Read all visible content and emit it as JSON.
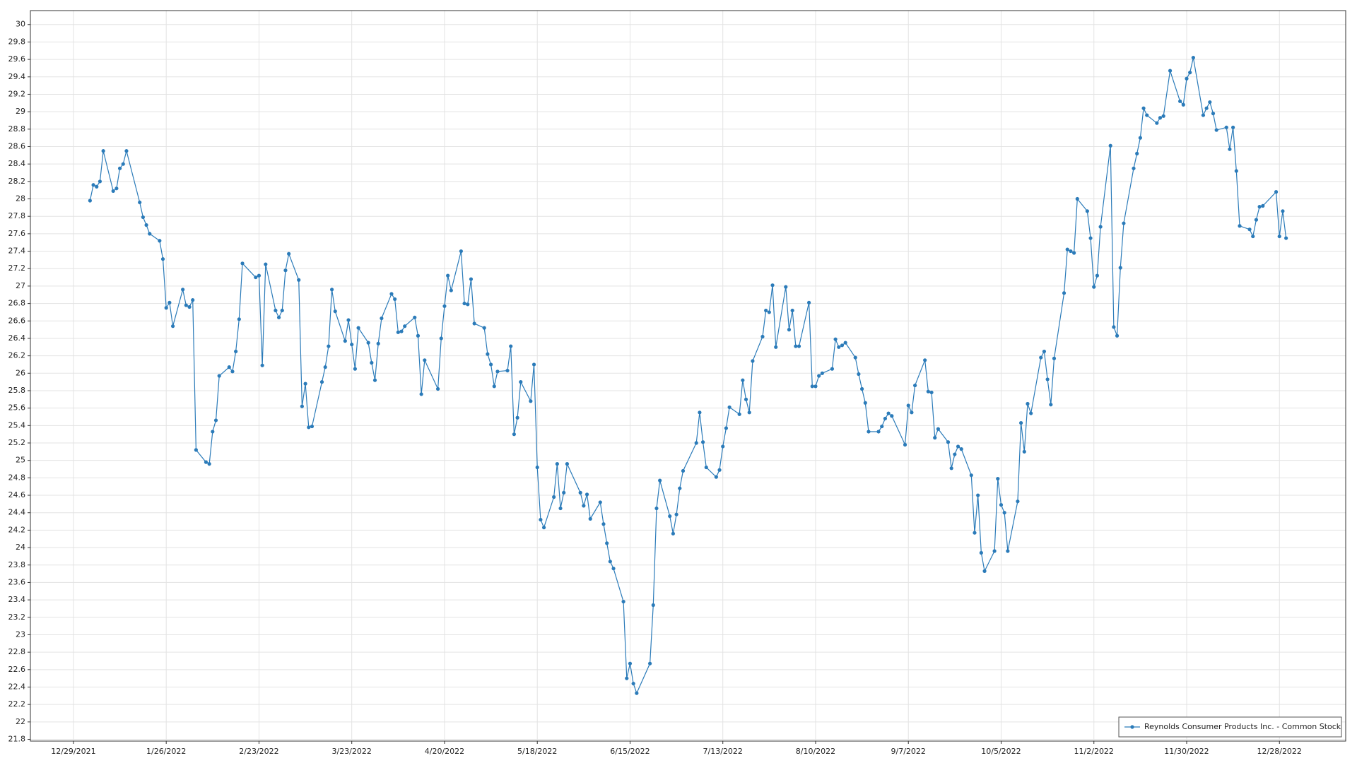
{
  "chart_data": {
    "type": "line",
    "x": [
      "1/3/2022",
      "1/4/2022",
      "1/5/2022",
      "1/6/2022",
      "1/7/2022",
      "1/10/2022",
      "1/11/2022",
      "1/12/2022",
      "1/13/2022",
      "1/14/2022",
      "1/18/2022",
      "1/19/2022",
      "1/20/2022",
      "1/21/2022",
      "1/24/2022",
      "1/25/2022",
      "1/26/2022",
      "1/27/2022",
      "1/28/2022",
      "1/31/2022",
      "2/1/2022",
      "2/2/2022",
      "2/3/2022",
      "2/4/2022",
      "2/7/2022",
      "2/8/2022",
      "2/9/2022",
      "2/10/2022",
      "2/11/2022",
      "2/14/2022",
      "2/15/2022",
      "2/16/2022",
      "2/17/2022",
      "2/18/2022",
      "2/22/2022",
      "2/23/2022",
      "2/24/2022",
      "2/25/2022",
      "2/28/2022",
      "3/1/2022",
      "3/2/2022",
      "3/3/2022",
      "3/4/2022",
      "3/7/2022",
      "3/8/2022",
      "3/9/2022",
      "3/10/2022",
      "3/11/2022",
      "3/14/2022",
      "3/15/2022",
      "3/16/2022",
      "3/17/2022",
      "3/18/2022",
      "3/21/2022",
      "3/22/2022",
      "3/23/2022",
      "3/24/2022",
      "3/25/2022",
      "3/28/2022",
      "3/29/2022",
      "3/30/2022",
      "3/31/2022",
      "4/1/2022",
      "4/4/2022",
      "4/5/2022",
      "4/6/2022",
      "4/7/2022",
      "4/8/2022",
      "4/11/2022",
      "4/12/2022",
      "4/13/2022",
      "4/14/2022",
      "4/18/2022",
      "4/19/2022",
      "4/20/2022",
      "4/21/2022",
      "4/22/2022",
      "4/25/2022",
      "4/26/2022",
      "4/27/2022",
      "4/28/2022",
      "4/29/2022",
      "5/2/2022",
      "5/3/2022",
      "5/4/2022",
      "5/5/2022",
      "5/6/2022",
      "5/9/2022",
      "5/10/2022",
      "5/11/2022",
      "5/12/2022",
      "5/13/2022",
      "5/16/2022",
      "5/17/2022",
      "5/18/2022",
      "5/19/2022",
      "5/20/2022",
      "5/23/2022",
      "5/24/2022",
      "5/25/2022",
      "5/26/2022",
      "5/27/2022",
      "5/31/2022",
      "6/1/2022",
      "6/2/2022",
      "6/3/2022",
      "6/6/2022",
      "6/7/2022",
      "6/8/2022",
      "6/9/2022",
      "6/10/2022",
      "6/13/2022",
      "6/14/2022",
      "6/15/2022",
      "6/16/2022",
      "6/17/2022",
      "6/21/2022",
      "6/22/2022",
      "6/23/2022",
      "6/24/2022",
      "6/27/2022",
      "6/28/2022",
      "6/29/2022",
      "6/30/2022",
      "7/1/2022",
      "7/5/2022",
      "7/6/2022",
      "7/7/2022",
      "7/8/2022",
      "7/11/2022",
      "7/12/2022",
      "7/13/2022",
      "7/14/2022",
      "7/15/2022",
      "7/18/2022",
      "7/19/2022",
      "7/20/2022",
      "7/21/2022",
      "7/22/2022",
      "7/25/2022",
      "7/26/2022",
      "7/27/2022",
      "7/28/2022",
      "7/29/2022",
      "8/1/2022",
      "8/2/2022",
      "8/3/2022",
      "8/4/2022",
      "8/5/2022",
      "8/8/2022",
      "8/9/2022",
      "8/10/2022",
      "8/11/2022",
      "8/12/2022",
      "8/15/2022",
      "8/16/2022",
      "8/17/2022",
      "8/18/2022",
      "8/19/2022",
      "8/22/2022",
      "8/23/2022",
      "8/24/2022",
      "8/25/2022",
      "8/26/2022",
      "8/29/2022",
      "8/30/2022",
      "8/31/2022",
      "9/1/2022",
      "9/2/2022",
      "9/6/2022",
      "9/7/2022",
      "9/8/2022",
      "9/9/2022",
      "9/12/2022",
      "9/13/2022",
      "9/14/2022",
      "9/15/2022",
      "9/16/2022",
      "9/19/2022",
      "9/20/2022",
      "9/21/2022",
      "9/22/2022",
      "9/23/2022",
      "9/26/2022",
      "9/27/2022",
      "9/28/2022",
      "9/29/2022",
      "9/30/2022",
      "10/3/2022",
      "10/4/2022",
      "10/5/2022",
      "10/6/2022",
      "10/7/2022",
      "10/10/2022",
      "10/11/2022",
      "10/12/2022",
      "10/13/2022",
      "10/14/2022",
      "10/17/2022",
      "10/18/2022",
      "10/19/2022",
      "10/20/2022",
      "10/21/2022",
      "10/24/2022",
      "10/25/2022",
      "10/26/2022",
      "10/27/2022",
      "10/28/2022",
      "10/31/2022",
      "11/1/2022",
      "11/2/2022",
      "11/3/2022",
      "11/4/2022",
      "11/7/2022",
      "11/8/2022",
      "11/9/2022",
      "11/10/2022",
      "11/11/2022",
      "11/14/2022",
      "11/15/2022",
      "11/16/2022",
      "11/17/2022",
      "11/18/2022",
      "11/21/2022",
      "11/22/2022",
      "11/23/2022",
      "11/25/2022",
      "11/28/2022",
      "11/29/2022",
      "11/30/2022",
      "12/1/2022",
      "12/2/2022",
      "12/5/2022",
      "12/6/2022",
      "12/7/2022",
      "12/8/2022",
      "12/9/2022",
      "12/12/2022",
      "12/13/2022",
      "12/14/2022",
      "12/15/2022",
      "12/16/2022",
      "12/19/2022",
      "12/20/2022",
      "12/21/2022",
      "12/22/2022",
      "12/23/2022",
      "12/27/2022",
      "12/28/2022",
      "12/29/2022",
      "12/30/2022"
    ],
    "series": [
      {
        "name": "Reynolds Consumer Products Inc. - Common Stock",
        "color": "#2b7bb9",
        "values": [
          27.98,
          28.16,
          28.14,
          28.2,
          28.55,
          28.09,
          28.12,
          28.35,
          28.4,
          28.55,
          27.96,
          27.79,
          27.7,
          27.6,
          27.52,
          27.31,
          26.75,
          26.81,
          26.54,
          26.96,
          26.78,
          26.76,
          26.84,
          25.12,
          24.98,
          24.96,
          25.33,
          25.46,
          25.97,
          26.07,
          26.02,
          26.25,
          26.62,
          27.26,
          27.1,
          27.12,
          26.09,
          27.25,
          26.72,
          26.64,
          26.72,
          27.18,
          27.37,
          27.07,
          25.62,
          25.88,
          25.38,
          25.39,
          25.9,
          26.07,
          26.31,
          26.96,
          26.71,
          26.37,
          26.61,
          26.33,
          26.05,
          26.52,
          26.35,
          26.12,
          25.92,
          26.34,
          26.63,
          26.91,
          26.85,
          26.47,
          26.48,
          26.54,
          26.64,
          26.43,
          25.76,
          26.15,
          25.82,
          26.4,
          26.77,
          27.12,
          26.95,
          27.4,
          26.8,
          26.79,
          27.08,
          26.57,
          26.52,
          26.22,
          26.1,
          25.85,
          26.02,
          26.03,
          26.31,
          25.3,
          25.49,
          25.9,
          25.68,
          26.1,
          24.92,
          24.32,
          24.23,
          24.58,
          24.96,
          24.45,
          24.63,
          24.96,
          24.63,
          24.48,
          24.61,
          24.33,
          24.52,
          24.27,
          24.05,
          23.84,
          23.76,
          23.38,
          22.5,
          22.67,
          22.44,
          22.33,
          22.67,
          23.34,
          24.45,
          24.77,
          24.36,
          24.16,
          24.38,
          24.68,
          24.88,
          25.2,
          25.55,
          25.21,
          24.92,
          24.81,
          24.89,
          25.16,
          25.37,
          25.61,
          25.53,
          25.92,
          25.7,
          25.55,
          26.14,
          26.42,
          26.72,
          26.7,
          27.01,
          26.3,
          26.99,
          26.5,
          26.72,
          26.31,
          26.31,
          26.81,
          25.85,
          25.85,
          25.97,
          26.0,
          26.05,
          26.39,
          26.3,
          26.32,
          26.35,
          26.18,
          25.99,
          25.82,
          25.66,
          25.33,
          25.33,
          25.39,
          25.48,
          25.54,
          25.51,
          25.18,
          25.63,
          25.55,
          25.86,
          26.15,
          25.79,
          25.78,
          25.26,
          25.36,
          25.21,
          24.91,
          25.07,
          25.16,
          25.13,
          24.83,
          24.17,
          24.6,
          23.94,
          23.73,
          23.96,
          24.79,
          24.49,
          24.4,
          23.96,
          24.53,
          25.43,
          25.1,
          25.65,
          25.54,
          26.18,
          26.25,
          25.93,
          25.64,
          26.17,
          26.92,
          27.42,
          27.4,
          27.38,
          28.0,
          27.86,
          27.55,
          26.99,
          27.12,
          27.68,
          28.61,
          26.53,
          26.43,
          27.21,
          27.72,
          28.35,
          28.52,
          28.7,
          29.04,
          28.96,
          28.87,
          28.93,
          28.95,
          29.47,
          29.12,
          29.08,
          29.38,
          29.45,
          29.62,
          28.96,
          29.04,
          29.11,
          28.98,
          28.79,
          28.82,
          28.57,
          28.82,
          28.32,
          27.69,
          27.65,
          27.57,
          27.76,
          27.91,
          27.92,
          28.08,
          27.57,
          27.86,
          27.55
        ]
      }
    ],
    "xlim": [
      "12/16/2021",
      "1/17/2023"
    ],
    "xticks": [
      "12/29/2021",
      "1/26/2022",
      "2/23/2022",
      "3/23/2022",
      "4/20/2022",
      "5/18/2022",
      "6/15/2022",
      "7/13/2022",
      "8/10/2022",
      "9/7/2022",
      "10/5/2022",
      "11/2/2022",
      "11/30/2022",
      "12/28/2022"
    ],
    "ylim": [
      21.78,
      30.16
    ],
    "yticks": [
      21.8,
      22,
      22.2,
      22.4,
      22.6,
      22.8,
      23,
      23.2,
      23.4,
      23.6,
      23.8,
      24,
      24.2,
      24.4,
      24.6,
      24.8,
      25,
      25.2,
      25.4,
      25.6,
      25.8,
      26,
      26.2,
      26.4,
      26.6,
      26.8,
      27,
      27.2,
      27.4,
      27.6,
      27.8,
      28,
      28.2,
      28.4,
      28.6,
      28.8,
      29,
      29.2,
      29.4,
      29.6,
      29.8,
      30
    ],
    "grid": true,
    "legend": "lower right"
  }
}
